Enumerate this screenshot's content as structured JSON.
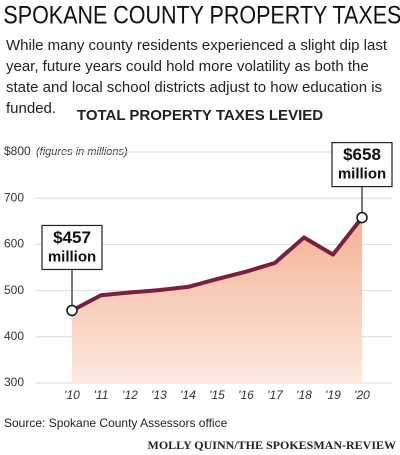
{
  "header": {
    "title": "SPOKANE COUNTY PROPERTY TAXES",
    "subtitle": "While many county residents experienced a slight dip last year, future years could hold more volatility as both the state and local school districts adjust to how education is funded."
  },
  "chart_data": {
    "type": "area",
    "title": "TOTAL PROPERTY TAXES LEVIED",
    "y_note": "(figures in millions)",
    "categories": [
      "'10",
      "'11",
      "'12",
      "'13",
      "'14",
      "'15",
      "'16",
      "'17",
      "'18",
      "'19",
      "'20"
    ],
    "series": [
      {
        "color": "#7a1f3d",
        "fill": "#f4b193",
        "values": [
          457,
          490,
          496,
          501,
          508,
          525,
          541,
          560,
          615,
          578,
          658
        ]
      }
    ],
    "ylim": [
      300,
      800
    ],
    "yticks": [
      300,
      400,
      500,
      600,
      700,
      {
        "value": 800,
        "label": "$800"
      }
    ],
    "grid": true,
    "annotations": [
      {
        "index": 0,
        "lines": [
          "$457",
          "million"
        ]
      },
      {
        "index": 10,
        "lines": [
          "$658",
          "million"
        ]
      }
    ]
  },
  "footer": {
    "source": "Source: Spokane County Assessors office",
    "credit": "MOLLY QUINN/THE SPOKESMAN-REVIEW"
  }
}
